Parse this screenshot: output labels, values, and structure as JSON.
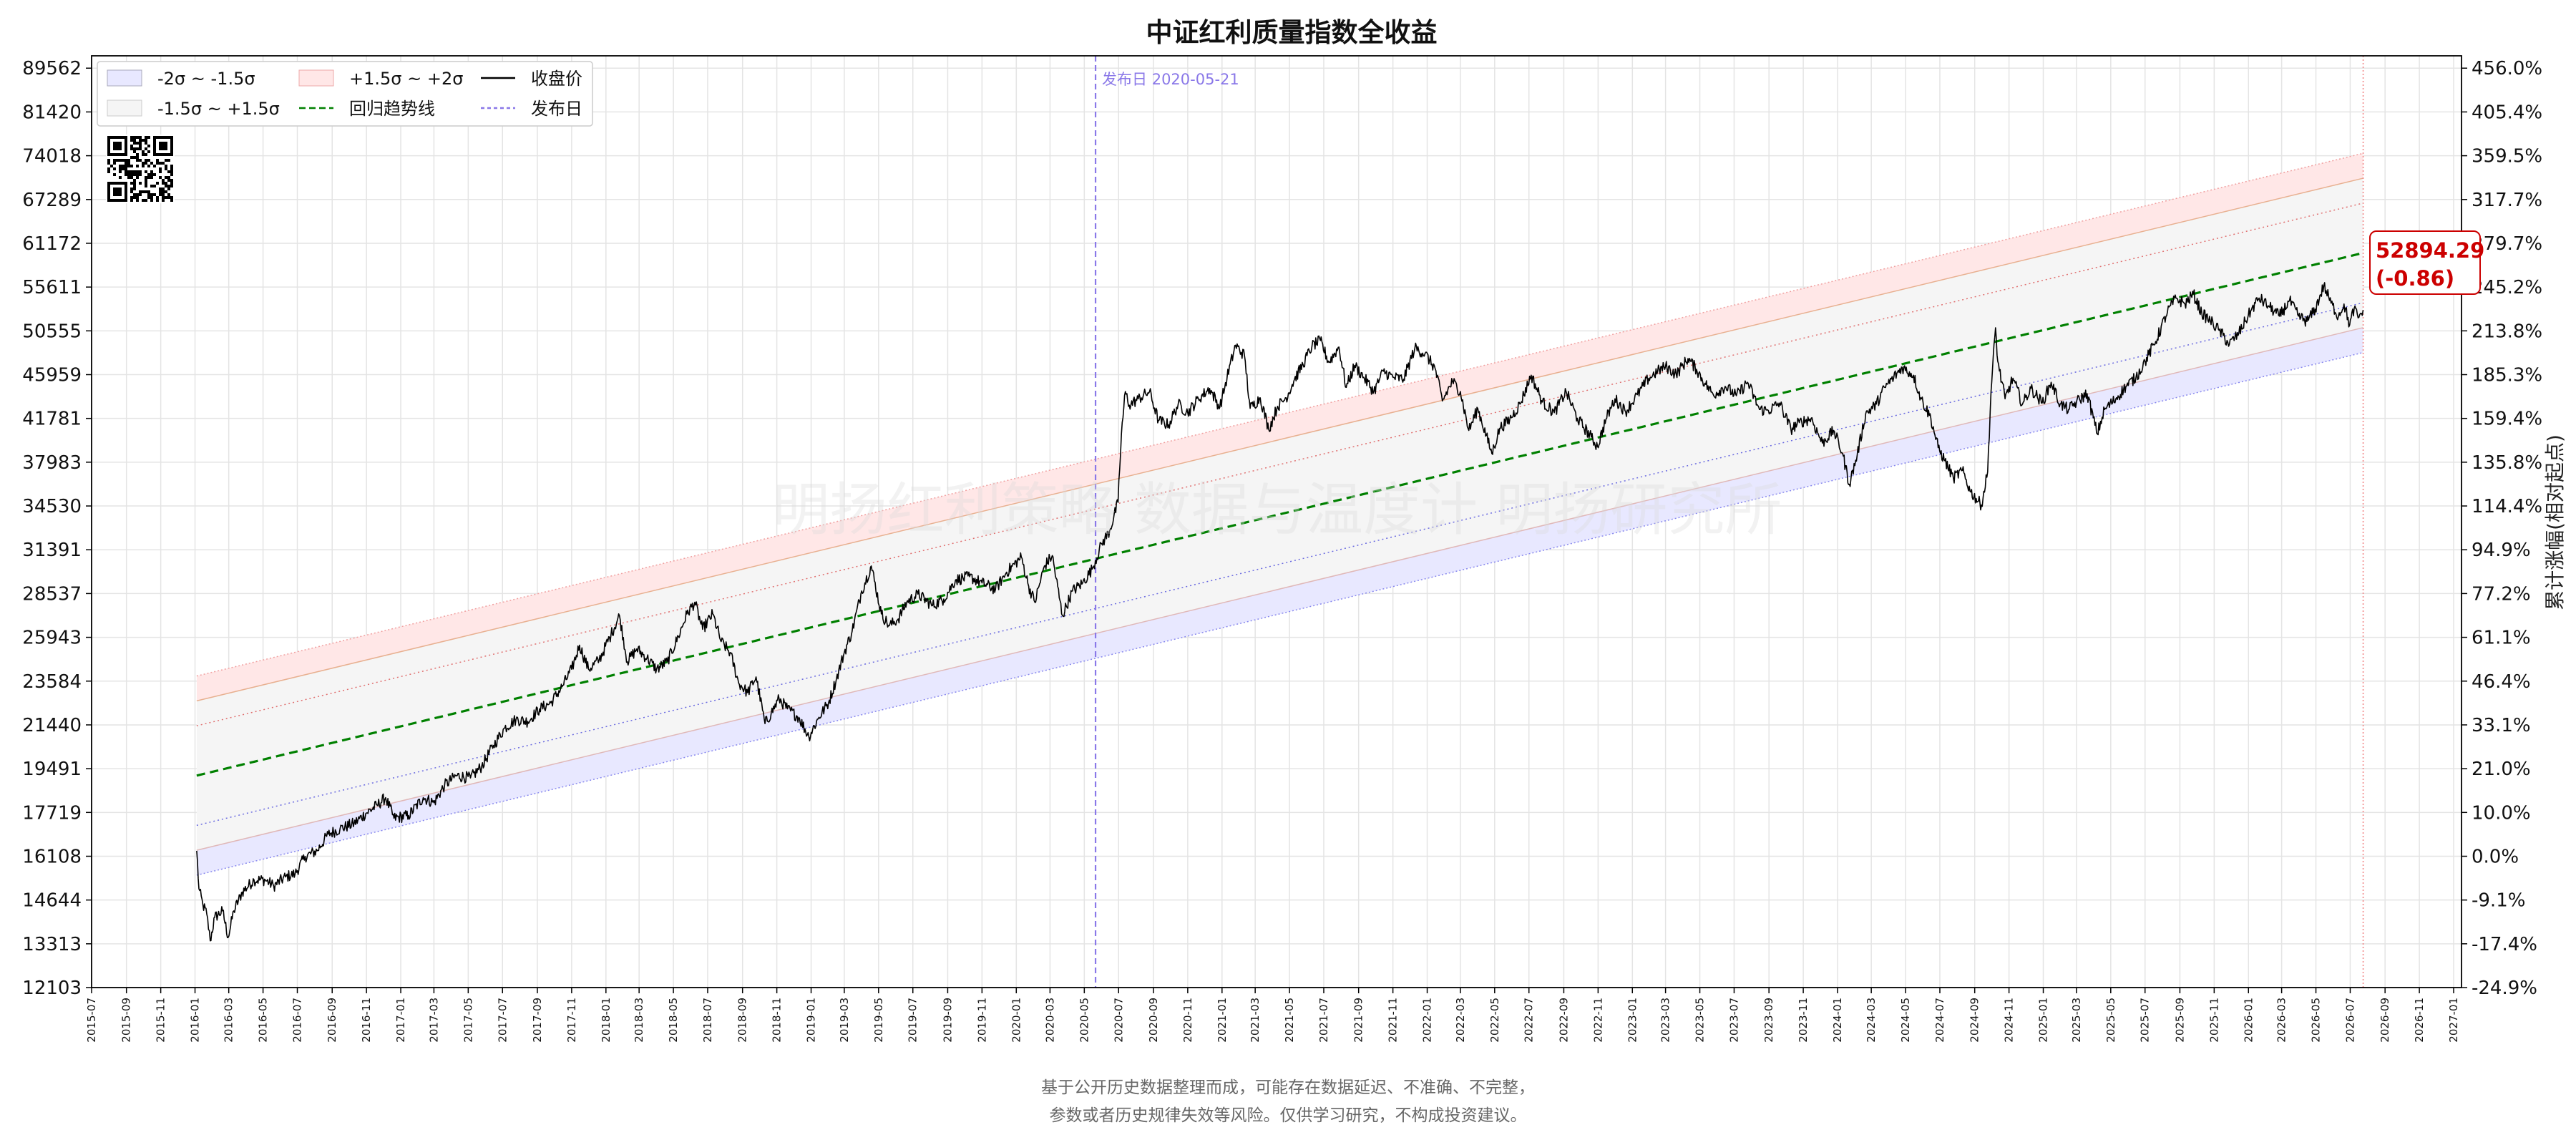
{
  "chart_data": {
    "type": "line",
    "title": "中证红利质量指数全收益",
    "xlabel": "",
    "ylabel": "",
    "ylabel_right": "累计涨幅(相对起点)",
    "scale": "log",
    "ylim": [
      12103,
      92000
    ],
    "xlim": [
      "2015-07-01",
      "2027-01-15"
    ],
    "y_ticks_left": [
      "89562",
      "81420",
      "74018",
      "67289",
      "61172",
      "55611",
      "50555",
      "45959",
      "41781",
      "37983",
      "34530",
      "31391",
      "28537",
      "25943",
      "23584",
      "21440",
      "19491",
      "17719",
      "16108",
      "14644",
      "13313",
      "12103"
    ],
    "y_ticks_right": [
      "456.0%",
      "405.4%",
      "359.5%",
      "317.7%",
      "279.7%",
      "245.2%",
      "213.8%",
      "185.3%",
      "159.4%",
      "135.8%",
      "114.4%",
      "94.9%",
      "77.2%",
      "61.1%",
      "46.4%",
      "33.1%",
      "21.0%",
      "10.0%",
      "0.0%",
      "-9.1%",
      "-17.4%",
      "-24.9%"
    ],
    "x_ticks": [
      "2015-07",
      "2015-09",
      "2015-11",
      "2016-01",
      "2016-03",
      "2016-05",
      "2016-07",
      "2016-09",
      "2016-11",
      "2017-01",
      "2017-03",
      "2017-05",
      "2017-07",
      "2017-09",
      "2017-11",
      "2018-01",
      "2018-03",
      "2018-05",
      "2018-07",
      "2018-09",
      "2018-11",
      "2019-01",
      "2019-03",
      "2019-05",
      "2019-07",
      "2019-09",
      "2019-11",
      "2020-01",
      "2020-03",
      "2020-05",
      "2020-07",
      "2020-09",
      "2020-11",
      "2021-01",
      "2021-03",
      "2021-05",
      "2021-07",
      "2021-09",
      "2021-11",
      "2022-01",
      "2022-03",
      "2022-05",
      "2022-07",
      "2022-09",
      "2022-11",
      "2023-01",
      "2023-03",
      "2023-05",
      "2023-07",
      "2023-09",
      "2023-11",
      "2024-01",
      "2024-03",
      "2024-05",
      "2024-07",
      "2024-09",
      "2024-11",
      "2025-01",
      "2025-03",
      "2025-05",
      "2025-07",
      "2025-09",
      "2025-11",
      "2026-01",
      "2026-03",
      "2026-05",
      "2026-07",
      "2026-09",
      "2026-11",
      "2027-01"
    ],
    "series": [
      {
        "name": "收盘价",
        "color": "#000000",
        "points": [
          [
            "2016-01-04",
            16300
          ],
          [
            "2016-01-08",
            15000
          ],
          [
            "2016-01-15",
            14500
          ],
          [
            "2016-01-22",
            14200
          ],
          [
            "2016-01-28",
            13400
          ],
          [
            "2016-02-05",
            14100
          ],
          [
            "2016-02-19",
            14300
          ],
          [
            "2016-02-29",
            13500
          ],
          [
            "2016-03-10",
            14300
          ],
          [
            "2016-03-25",
            14900
          ],
          [
            "2016-04-15",
            15300
          ],
          [
            "2016-05-05",
            15300
          ],
          [
            "2016-05-20",
            15100
          ],
          [
            "2016-06-10",
            15400
          ],
          [
            "2016-06-27",
            15500
          ],
          [
            "2016-07-15",
            16100
          ],
          [
            "2016-08-05",
            16300
          ],
          [
            "2016-08-25",
            16900
          ],
          [
            "2016-09-15",
            17100
          ],
          [
            "2016-10-10",
            17300
          ],
          [
            "2016-11-01",
            17700
          ],
          [
            "2016-11-20",
            18000
          ],
          [
            "2016-12-05",
            18300
          ],
          [
            "2016-12-20",
            17500
          ],
          [
            "2017-01-15",
            17600
          ],
          [
            "2017-02-10",
            18300
          ],
          [
            "2017-03-01",
            18100
          ],
          [
            "2017-03-20",
            18800
          ],
          [
            "2017-04-10",
            19200
          ],
          [
            "2017-05-05",
            19100
          ],
          [
            "2017-05-25",
            19600
          ],
          [
            "2017-06-15",
            20500
          ],
          [
            "2017-07-05",
            21300
          ],
          [
            "2017-07-25",
            21700
          ],
          [
            "2017-08-15",
            21600
          ],
          [
            "2017-09-05",
            22200
          ],
          [
            "2017-09-25",
            22500
          ],
          [
            "2017-10-15",
            23300
          ],
          [
            "2017-11-01",
            24200
          ],
          [
            "2017-11-15",
            25500
          ],
          [
            "2017-12-01",
            24200
          ],
          [
            "2017-12-20",
            24700
          ],
          [
            "2018-01-10",
            26100
          ],
          [
            "2018-01-25",
            27200
          ],
          [
            "2018-02-08",
            24600
          ],
          [
            "2018-02-25",
            25300
          ],
          [
            "2018-03-15",
            24800
          ],
          [
            "2018-04-01",
            24200
          ],
          [
            "2018-04-20",
            24600
          ],
          [
            "2018-05-10",
            26000
          ],
          [
            "2018-05-25",
            27300
          ],
          [
            "2018-06-08",
            28000
          ],
          [
            "2018-06-22",
            26400
          ],
          [
            "2018-07-10",
            27300
          ],
          [
            "2018-07-25",
            25700
          ],
          [
            "2018-08-10",
            25100
          ],
          [
            "2018-08-25",
            23500
          ],
          [
            "2018-09-10",
            23000
          ],
          [
            "2018-09-25",
            23800
          ],
          [
            "2018-10-11",
            21500
          ],
          [
            "2018-10-22",
            22000
          ],
          [
            "2018-11-05",
            22700
          ],
          [
            "2018-11-20",
            22200
          ],
          [
            "2018-12-10",
            21800
          ],
          [
            "2018-12-28",
            20900
          ],
          [
            "2019-01-15",
            21800
          ],
          [
            "2019-02-01",
            22500
          ],
          [
            "2019-02-15",
            23700
          ],
          [
            "2019-03-01",
            25100
          ],
          [
            "2019-03-15",
            26300
          ],
          [
            "2019-04-01",
            28700
          ],
          [
            "2019-04-18",
            30300
          ],
          [
            "2019-05-06",
            27300
          ],
          [
            "2019-05-20",
            26600
          ],
          [
            "2019-06-05",
            27000
          ],
          [
            "2019-06-20",
            28000
          ],
          [
            "2019-07-10",
            28500
          ],
          [
            "2019-08-05",
            27800
          ],
          [
            "2019-08-25",
            28200
          ],
          [
            "2019-09-15",
            29400
          ],
          [
            "2019-10-10",
            29600
          ],
          [
            "2019-11-01",
            29200
          ],
          [
            "2019-11-25",
            28800
          ],
          [
            "2019-12-15",
            29900
          ],
          [
            "2020-01-10",
            30900
          ],
          [
            "2020-01-23",
            29000
          ],
          [
            "2020-02-03",
            28000
          ],
          [
            "2020-02-20",
            30300
          ],
          [
            "2020-03-05",
            31000
          ],
          [
            "2020-03-23",
            27200
          ],
          [
            "2020-04-10",
            28700
          ],
          [
            "2020-04-28",
            29200
          ],
          [
            "2020-05-15",
            30100
          ],
          [
            "2020-06-01",
            31800
          ],
          [
            "2020-06-15",
            32700
          ],
          [
            "2020-06-30",
            34800
          ],
          [
            "2020-07-06",
            40400
          ],
          [
            "2020-07-13",
            44300
          ],
          [
            "2020-07-20",
            43000
          ],
          [
            "2020-08-05",
            43600
          ],
          [
            "2020-08-25",
            44300
          ],
          [
            "2020-09-10",
            41600
          ],
          [
            "2020-09-28",
            41200
          ],
          [
            "2020-10-15",
            43100
          ],
          [
            "2020-11-01",
            42300
          ],
          [
            "2020-11-20",
            43600
          ],
          [
            "2020-12-10",
            44600
          ],
          [
            "2020-12-28",
            42800
          ],
          [
            "2021-01-10",
            45700
          ],
          [
            "2021-01-25",
            49000
          ],
          [
            "2021-02-10",
            47900
          ],
          [
            "2021-02-20",
            42700
          ],
          [
            "2021-03-10",
            43700
          ],
          [
            "2021-03-25",
            40800
          ],
          [
            "2021-04-10",
            42900
          ],
          [
            "2021-04-25",
            43700
          ],
          [
            "2021-05-10",
            45500
          ],
          [
            "2021-05-25",
            47000
          ],
          [
            "2021-06-10",
            48900
          ],
          [
            "2021-06-25",
            49500
          ],
          [
            "2021-07-10",
            47200
          ],
          [
            "2021-07-28",
            48800
          ],
          [
            "2021-08-10",
            44700
          ],
          [
            "2021-08-25",
            46900
          ],
          [
            "2021-09-10",
            45700
          ],
          [
            "2021-09-28",
            44300
          ],
          [
            "2021-10-15",
            46300
          ],
          [
            "2021-11-01",
            45700
          ],
          [
            "2021-11-20",
            45500
          ],
          [
            "2021-12-10",
            48700
          ],
          [
            "2021-12-28",
            48100
          ],
          [
            "2022-01-15",
            46600
          ],
          [
            "2022-01-28",
            43400
          ],
          [
            "2022-02-15",
            45300
          ],
          [
            "2022-03-01",
            44300
          ],
          [
            "2022-03-16",
            40700
          ],
          [
            "2022-04-01",
            42700
          ],
          [
            "2022-04-26",
            38700
          ],
          [
            "2022-05-10",
            40900
          ],
          [
            "2022-05-28",
            41700
          ],
          [
            "2022-06-15",
            43100
          ],
          [
            "2022-07-05",
            45900
          ],
          [
            "2022-07-25",
            43300
          ],
          [
            "2022-08-15",
            42300
          ],
          [
            "2022-09-05",
            44300
          ],
          [
            "2022-09-25",
            41800
          ],
          [
            "2022-10-20",
            40100
          ],
          [
            "2022-10-31",
            39300
          ],
          [
            "2022-11-15",
            41700
          ],
          [
            "2022-12-01",
            43600
          ],
          [
            "2022-12-20",
            42400
          ],
          [
            "2023-01-10",
            44000
          ],
          [
            "2023-01-30",
            45600
          ],
          [
            "2023-02-15",
            46300
          ],
          [
            "2023-03-01",
            46800
          ],
          [
            "2023-03-20",
            46000
          ],
          [
            "2023-04-10",
            47600
          ],
          [
            "2023-04-25",
            46500
          ],
          [
            "2023-05-10",
            45100
          ],
          [
            "2023-05-25",
            44000
          ],
          [
            "2023-06-15",
            44800
          ],
          [
            "2023-07-05",
            43900
          ],
          [
            "2023-07-25",
            45200
          ],
          [
            "2023-08-15",
            42600
          ],
          [
            "2023-08-31",
            42500
          ],
          [
            "2023-09-20",
            43200
          ],
          [
            "2023-10-10",
            40800
          ],
          [
            "2023-10-25",
            41400
          ],
          [
            "2023-11-15",
            41800
          ],
          [
            "2023-12-05",
            39600
          ],
          [
            "2023-12-25",
            40700
          ],
          [
            "2024-01-10",
            38700
          ],
          [
            "2024-01-22",
            36200
          ],
          [
            "2024-02-05",
            38600
          ],
          [
            "2024-02-20",
            42200
          ],
          [
            "2024-03-10",
            43100
          ],
          [
            "2024-03-25",
            44700
          ],
          [
            "2024-04-10",
            45700
          ],
          [
            "2024-04-25",
            46700
          ],
          [
            "2024-05-15",
            45900
          ],
          [
            "2024-05-28",
            43700
          ],
          [
            "2024-06-15",
            41800
          ],
          [
            "2024-06-28",
            39200
          ],
          [
            "2024-07-10",
            38100
          ],
          [
            "2024-07-25",
            36700
          ],
          [
            "2024-08-10",
            37300
          ],
          [
            "2024-08-25",
            35600
          ],
          [
            "2024-09-13",
            34600
          ],
          [
            "2024-09-24",
            37200
          ],
          [
            "2024-09-30",
            44300
          ],
          [
            "2024-10-08",
            50900
          ],
          [
            "2024-10-12",
            47300
          ],
          [
            "2024-10-25",
            43600
          ],
          [
            "2024-11-08",
            45600
          ],
          [
            "2024-11-25",
            43100
          ],
          [
            "2024-12-10",
            44600
          ],
          [
            "2024-12-30",
            43200
          ],
          [
            "2025-01-15",
            45200
          ],
          [
            "2025-01-31",
            43100
          ],
          [
            "2025-02-15",
            42600
          ],
          [
            "2025-03-01",
            43300
          ],
          [
            "2025-03-20",
            44100
          ],
          [
            "2025-04-07",
            40400
          ],
          [
            "2025-04-20",
            42600
          ],
          [
            "2025-05-10",
            43600
          ],
          [
            "2025-05-28",
            44800
          ],
          [
            "2025-06-15",
            45700
          ],
          [
            "2025-07-01",
            47300
          ],
          [
            "2025-07-20",
            49400
          ],
          [
            "2025-08-10",
            52700
          ],
          [
            "2025-08-25",
            54300
          ],
          [
            "2025-09-10",
            53600
          ],
          [
            "2025-09-25",
            54800
          ],
          [
            "2025-10-10",
            52500
          ],
          [
            "2025-10-25",
            51700
          ],
          [
            "2025-11-10",
            50600
          ],
          [
            "2025-11-28",
            49100
          ],
          [
            "2025-12-15",
            50300
          ],
          [
            "2026-01-05",
            52800
          ],
          [
            "2026-01-20",
            54300
          ],
          [
            "2026-02-05",
            53400
          ],
          [
            "2026-02-25",
            52200
          ],
          [
            "2026-03-15",
            54000
          ],
          [
            "2026-03-31",
            52200
          ],
          [
            "2026-04-15",
            51600
          ],
          [
            "2026-04-30",
            53000
          ],
          [
            "2026-05-15",
            55800
          ],
          [
            "2026-05-28",
            53700
          ],
          [
            "2026-06-10",
            52200
          ],
          [
            "2026-06-20",
            53600
          ],
          [
            "2026-06-30",
            51200
          ],
          [
            "2026-07-08",
            53100
          ],
          [
            "2026-07-15",
            52000
          ],
          [
            "2026-07-24",
            52894.29
          ]
        ]
      }
    ],
    "regression": {
      "name": "回归趋势线",
      "color": "#008000",
      "start": [
        "2016-01-04",
        19200
      ],
      "end": [
        "2026-07-24",
        59900
      ],
      "sigma_log": 0.1084
    },
    "bands": [
      {
        "name": "-2σ ~ -1.5σ",
        "color": "#e8e8ff"
      },
      {
        "name": "-1.5σ ~ +1.5σ",
        "color": "#f5f5f5"
      },
      {
        "name": "+1.5σ ~ +2σ",
        "color": "#ffe7e7"
      }
    ],
    "release": {
      "name": "发布日",
      "date": "2020-05-21",
      "label": "发布日 2020-05-21",
      "color": "#8a78e8"
    },
    "last": {
      "date": "2026-07-24",
      "value": "52894.29",
      "change": "(-0.86)",
      "color": "#cc0000"
    },
    "legend": {
      "placement": "top-left",
      "entries": [
        "-2σ ~ -1.5σ",
        "+1.5σ ~ +2σ",
        "收盘价",
        "-1.5σ ~ +1.5σ",
        "回归趋势线",
        "发布日"
      ]
    },
    "grid": true,
    "watermark": "明扬红利策略 数据与温度计 明扬研究所",
    "footnote": [
      "基于公开历史数据整理而成，可能存在数据延迟、不准确、不完整，",
      "参数或者历史规律失效等风险。仅供学习研究，不构成投资建议。"
    ]
  }
}
